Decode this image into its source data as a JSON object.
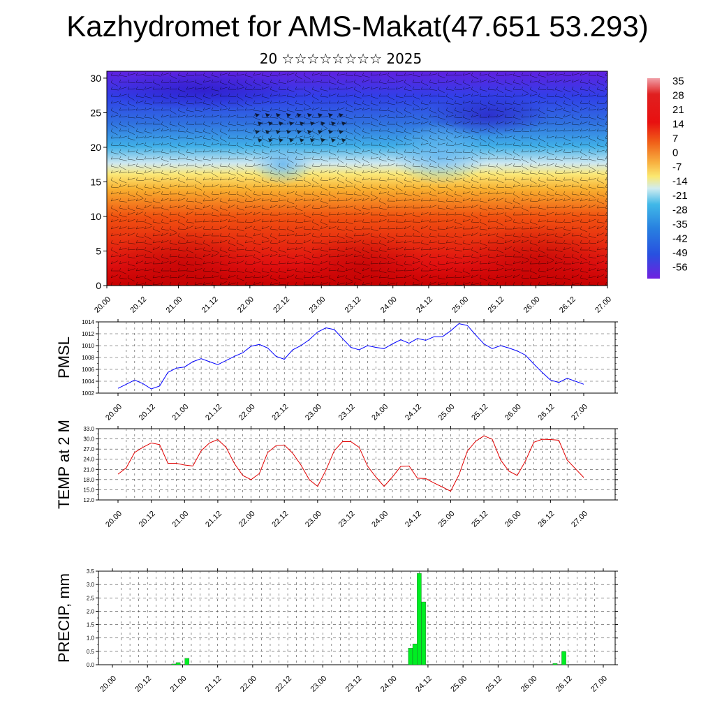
{
  "title": "Kazhydromet for AMS-Makat(47.651 53.293)",
  "subtitle": "20 ☆☆☆☆☆☆☆☆ 2025",
  "colorbar": {
    "labels": [
      "35",
      "28",
      "21",
      "14",
      "7",
      "0",
      "-7",
      "-14",
      "-21",
      "-28",
      "-35",
      "-42",
      "-49",
      "-56"
    ],
    "colors": {
      "top": "#f0a0a8",
      "red": "#d60f0f",
      "orange": "#f08020",
      "yellow": "#fbe870",
      "cyan": "#40b8e8",
      "blue": "#2850e0",
      "violet": "#7020e0"
    }
  },
  "chart_data": [
    {
      "type": "heatmap",
      "title": "",
      "xlabel": "",
      "ylabel": "",
      "x_ticks": [
        "20.00",
        "20.12",
        "21.00",
        "21.12",
        "22.00",
        "22.12",
        "23.00",
        "23.12",
        "24.00",
        "24.12",
        "25.00",
        "25.12",
        "26.00",
        "26.12",
        "27.00"
      ],
      "y_ticks": [
        "0",
        "5",
        "10",
        "15",
        "20",
        "25",
        "30"
      ],
      "xlim": [
        0,
        14
      ],
      "ylim": [
        0,
        31
      ],
      "description_of_values": "temperature by level, warm (red) near surface, cold (blue/violet) aloft, wind barbs overlay",
      "grid": false
    },
    {
      "type": "line",
      "ylabel": "PMSL",
      "x_ticks": [
        "20.00",
        "20.12",
        "21.00",
        "21.12",
        "22.00",
        "22.12",
        "23.00",
        "23.12",
        "24.00",
        "24.12",
        "25.00",
        "25.12",
        "26.00",
        "26.12",
        "27.00"
      ],
      "y_ticks": [
        "1002",
        "1004",
        "1006",
        "1008",
        "1010",
        "1012",
        "1014"
      ],
      "ylim": [
        1002,
        1014
      ],
      "grid": true,
      "series": [
        {
          "color": "#0000ff",
          "values": [
            1002.8,
            1003.5,
            1004.2,
            1003.6,
            1002.7,
            1003.2,
            1005.5,
            1006.2,
            1006.4,
            1007.3,
            1007.8,
            1007.3,
            1006.8,
            1007.5,
            1008.2,
            1008.8,
            1009.9,
            1010.2,
            1009.6,
            1008.2,
            1007.7,
            1009.3,
            1010.0,
            1011.0,
            1012.3,
            1013.0,
            1012.7,
            1011.2,
            1009.7,
            1009.3,
            1010.0,
            1009.7,
            1009.5,
            1010.3,
            1011.0,
            1010.4,
            1011.2,
            1010.9,
            1011.5,
            1011.5,
            1012.5,
            1013.7,
            1013.4,
            1011.8,
            1010.3,
            1009.5,
            1010.0,
            1009.6,
            1009.1,
            1008.4,
            1006.9,
            1005.5,
            1004.2,
            1003.8,
            1004.5,
            1004.0,
            1003.5
          ]
        }
      ]
    },
    {
      "type": "line",
      "ylabel": "TEMP at 2 M",
      "x_ticks": [
        "20.00",
        "20.12",
        "21.00",
        "21.12",
        "22.00",
        "22.12",
        "23.00",
        "23.12",
        "24.00",
        "24.12",
        "25.00",
        "25.12",
        "26.00",
        "26.12",
        "27.00"
      ],
      "y_ticks": [
        "12.0",
        "15.0",
        "18.0",
        "21.0",
        "24.0",
        "27.0",
        "30.0",
        "33.0"
      ],
      "ylim": [
        12,
        33
      ],
      "grid": true,
      "series": [
        {
          "color": "#e00000",
          "values": [
            19.6,
            21.5,
            26.0,
            27.5,
            28.8,
            28.3,
            22.8,
            22.8,
            22.3,
            22.0,
            26.5,
            28.8,
            29.8,
            27.5,
            22.7,
            19.2,
            18.0,
            19.8,
            26.0,
            28.0,
            28.2,
            25.8,
            22.3,
            18.0,
            16.0,
            20.8,
            26.5,
            29.2,
            29.2,
            27.5,
            22.0,
            18.8,
            16.0,
            18.8,
            21.9,
            22.0,
            18.4,
            18.3,
            17.0,
            15.8,
            14.6,
            19.4,
            26.4,
            29.3,
            30.9,
            29.9,
            23.8,
            20.5,
            19.2,
            23.5,
            29.0,
            29.9,
            29.8,
            29.6,
            23.8,
            21.2,
            18.6
          ]
        }
      ]
    },
    {
      "type": "bar",
      "ylabel": "PRECIP, mm",
      "x_ticks": [
        "20.00",
        "20.12",
        "21.00",
        "21.12",
        "22.00",
        "22.12",
        "23.00",
        "23.12",
        "24.00",
        "24.12",
        "25.00",
        "25.12",
        "26.00",
        "26.12",
        "27.00"
      ],
      "y_ticks": [
        "0.0",
        "0.5",
        "1.0",
        "1.5",
        "2.0",
        "2.5",
        "3.0",
        "3.5"
      ],
      "ylim": [
        0,
        3.5
      ],
      "grid": true,
      "bar_color": "#00ee22",
      "bars": [
        {
          "x": 7.0,
          "value": 0.03
        },
        {
          "x": 7.5,
          "value": 0.08
        },
        {
          "x": 8.5,
          "value": 0.24
        },
        {
          "x": 34.0,
          "value": 0.62
        },
        {
          "x": 34.5,
          "value": 0.78
        },
        {
          "x": 35.0,
          "value": 3.42
        },
        {
          "x": 35.5,
          "value": 2.35
        },
        {
          "x": 50.5,
          "value": 0.05
        },
        {
          "x": 51.5,
          "value": 0.5
        }
      ]
    }
  ]
}
